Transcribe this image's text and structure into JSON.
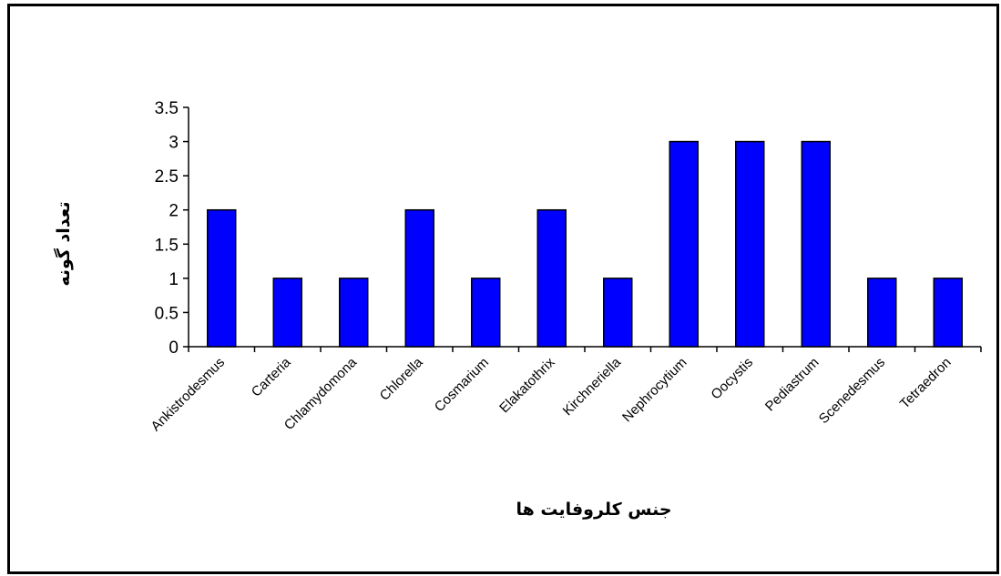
{
  "chart_data": {
    "type": "bar",
    "title": "",
    "xlabel": "جنس کلروفایت ها",
    "ylabel": "تعداد گونه",
    "ylim": [
      0,
      3.5
    ],
    "yticks": [
      "0",
      "0.5",
      "1",
      "1.5",
      "2",
      "2.5",
      "3",
      "3.5"
    ],
    "grid": false,
    "legend": "none",
    "bar_color": "#0000ff",
    "categories": [
      "Ankistrodesmus",
      "Carteria",
      "Chlamydomonas",
      "Chlorella",
      "Cosmarium",
      "Elakatothrix",
      "Kirchneriella",
      "Nephrocytium",
      "Oocystis",
      "Pediastrum",
      "Scenedesmus",
      "Tetraedron"
    ],
    "tick_labels": [
      "Ankistrodesmus",
      "Carteria",
      "Chlamydomona",
      "Chlorella",
      "Cosmarium",
      "Elakatothrix",
      "Kirchneriella",
      "Nephrocytium",
      "Oocystis",
      "Pediastrum",
      "Scenedesmus",
      "Tetraedron"
    ],
    "values": [
      2,
      1,
      1,
      2,
      1,
      2,
      1,
      3,
      3,
      3,
      1,
      1
    ]
  }
}
